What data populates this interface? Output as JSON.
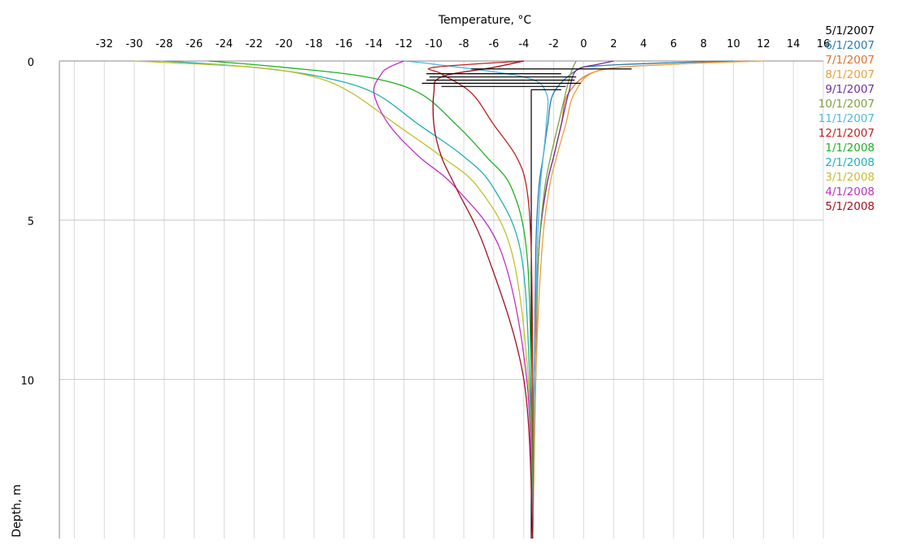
{
  "chart_data": {
    "type": "line",
    "xlabel": "Temperature, °C",
    "ylabel": "Depth, m",
    "xlim": [
      -35,
      16
    ],
    "ylim": [
      15,
      0
    ],
    "x_ticks": [
      -32,
      -30,
      -28,
      -26,
      -24,
      -22,
      -20,
      -18,
      -16,
      -14,
      -12,
      -10,
      -8,
      -6,
      -4,
      -2,
      0,
      2,
      4,
      6,
      8,
      10,
      12,
      14,
      16
    ],
    "y_ticks": [
      0,
      5,
      10
    ],
    "grid": true,
    "legend_position": "top-right",
    "series": [
      {
        "name": "5/1/2007",
        "color": "#000000",
        "x": [
          -3.5,
          -3.5,
          -3.5,
          -3.5
        ],
        "y": [
          15,
          10,
          5,
          0.9
        ]
      },
      {
        "name": "6/1/2007",
        "color": "#2a7ab0",
        "x": [
          -3.4,
          -3.3,
          -3.2,
          -3.0,
          -2.7,
          -2.4,
          -2.0,
          -0.5,
          1,
          6,
          10
        ],
        "y": [
          15,
          10,
          6,
          4,
          3,
          2,
          1,
          0.3,
          0.15,
          0.05,
          0
        ]
      },
      {
        "name": "7/1/2007",
        "color": "#e07030",
        "x": [
          -3.4,
          -3.2,
          -3.0,
          -2.5,
          -2.0,
          -1.5,
          -1.0,
          1,
          6,
          11
        ],
        "y": [
          15,
          10,
          6,
          4,
          3,
          2,
          1,
          0.3,
          0.1,
          0
        ]
      },
      {
        "name": "8/1/2007",
        "color": "#e8a040",
        "x": [
          -3.4,
          -3.2,
          -2.8,
          -2.3,
          -1.8,
          -1.2,
          -0.6,
          1,
          6,
          12
        ],
        "y": [
          15,
          10,
          6,
          4,
          3,
          2,
          1,
          0.3,
          0.1,
          0
        ]
      },
      {
        "name": "9/1/2007",
        "color": "#7030a0",
        "x": [
          -3.4,
          -3.3,
          -3.0,
          -2.5,
          -2.0,
          -1.5,
          -1.0,
          -0.5,
          1,
          2
        ],
        "y": [
          15,
          10,
          6,
          4,
          3,
          2,
          1,
          0.3,
          0.1,
          0
        ]
      },
      {
        "name": "10/1/2007",
        "color": "#80a040",
        "x": [
          -3.4,
          -3.3,
          -3.0,
          -2.6,
          -2.2,
          -1.7,
          -1.2,
          -0.8,
          -0.5
        ],
        "y": [
          15,
          10,
          6,
          4,
          3,
          2,
          1,
          0.3,
          0
        ]
      },
      {
        "name": "11/1/2007",
        "color": "#50b8e0",
        "x": [
          -3.4,
          -3.3,
          -3.1,
          -2.9,
          -2.7,
          -2.5,
          -2.5,
          -4,
          -10,
          -12
        ],
        "y": [
          15,
          10,
          6,
          4,
          3,
          2,
          1,
          0.5,
          0.1,
          0
        ]
      },
      {
        "name": "12/1/2007",
        "color": "#c02020",
        "x": [
          -3.4,
          -3.4,
          -3.5,
          -3.8,
          -4.5,
          -6,
          -7.5,
          -9.5,
          -10,
          -4
        ],
        "y": [
          15,
          10,
          6,
          4,
          3,
          2,
          1,
          0.4,
          0.2,
          0
        ]
      },
      {
        "name": "1/1/2008",
        "color": "#20b020",
        "x": [
          -3.4,
          -3.5,
          -3.8,
          -4.8,
          -6.5,
          -8.5,
          -11,
          -14.5,
          -20,
          -25
        ],
        "y": [
          15,
          10,
          6,
          4,
          3,
          2,
          1,
          0.5,
          0.2,
          0
        ]
      },
      {
        "name": "2/1/2008",
        "color": "#20b0b0",
        "x": [
          -3.4,
          -3.6,
          -4.2,
          -6,
          -8,
          -11,
          -14,
          -17.5,
          -22,
          -28
        ],
        "y": [
          15,
          10,
          6,
          4,
          3,
          2,
          1,
          0.5,
          0.2,
          0
        ]
      },
      {
        "name": "3/1/2008",
        "color": "#c0c030",
        "x": [
          -3.4,
          -3.7,
          -4.8,
          -7,
          -9.5,
          -12.5,
          -15.5,
          -18,
          -22,
          -30
        ],
        "y": [
          15,
          10,
          6,
          4,
          3,
          2,
          1,
          0.5,
          0.2,
          0
        ]
      },
      {
        "name": "4/1/2008",
        "color": "#c030c0",
        "x": [
          -3.4,
          -3.8,
          -5.5,
          -8.5,
          -11,
          -13,
          -14,
          -13.5,
          -13,
          -12
        ],
        "y": [
          15,
          10,
          6,
          4,
          3,
          2,
          1,
          0.4,
          0.2,
          0
        ]
      },
      {
        "name": "5/1/2008",
        "color": "#a01020",
        "x": [
          -3.4,
          -4.0,
          -6.5,
          -8.5,
          -9.5,
          -10,
          -10,
          -9.5,
          -6,
          -4
        ],
        "y": [
          15,
          10,
          6,
          4,
          3,
          2,
          1,
          0.5,
          0.2,
          0
        ]
      }
    ],
    "annotations": {
      "description_segments": [
        {
          "x1": -10.5,
          "x2": -1.5,
          "y": 0.4
        },
        {
          "x1": -10.3,
          "x2": -0.5,
          "y": 0.5
        },
        {
          "x1": -10.5,
          "x2": -0.6,
          "y": 0.6
        },
        {
          "x1": -10.8,
          "x2": -0.2,
          "y": 0.7
        },
        {
          "x1": -9.5,
          "x2": -1.2,
          "y": 0.8
        },
        {
          "x1": -3.5,
          "x2": -1.5,
          "y": 0.9
        },
        {
          "x1": -7.5,
          "x2": 3.2,
          "y": 0.25
        }
      ]
    }
  }
}
